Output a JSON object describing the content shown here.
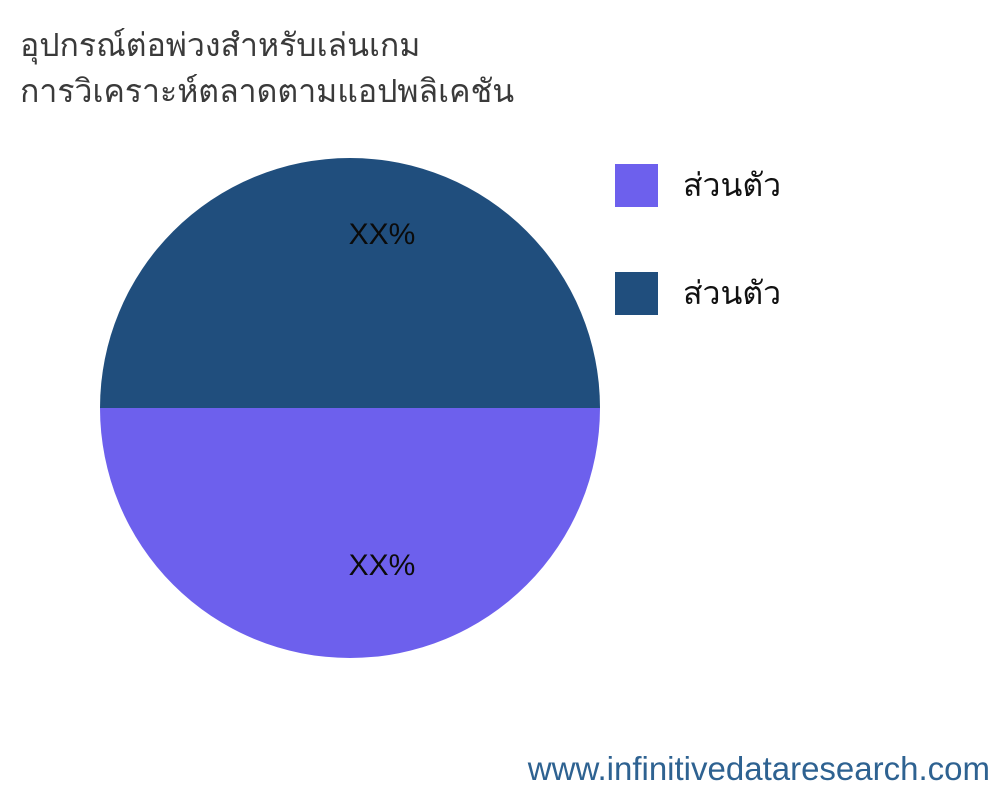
{
  "title": {
    "line1": "อุปกรณ์ต่อพ่วงสำหรับเล่นเกม",
    "line2": "การวิเคราะห์ตลาดตามแอปพลิเคชัน"
  },
  "chart_data": {
    "type": "pie",
    "title": "อุปกรณ์ต่อพ่วงสำหรับเล่นเกม การวิเคราะห์ตลาดตามแอปพลิเคชัน",
    "start_angle_deg": 90,
    "direction": "clockwise",
    "legend_position": "right",
    "slices": [
      {
        "label": "ส่วนตัว",
        "value": 50,
        "display_value": "XX%",
        "color": "#6d60ed"
      },
      {
        "label": "ส่วนตัว",
        "value": 50,
        "display_value": "XX%",
        "color": "#204e7d"
      }
    ]
  },
  "colors": {
    "purple": "#6d60ed",
    "navy": "#204e7d",
    "footer_text": "#2e6291",
    "title_text": "#3a3a3a",
    "label_text": "#0b0b0b"
  },
  "footer": {
    "website": "www.infinitivedataresearch.com"
  }
}
